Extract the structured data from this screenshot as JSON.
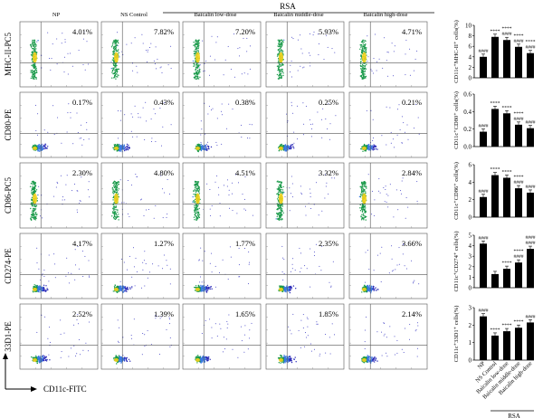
{
  "header": {
    "group_label": "RSA",
    "columns": [
      "NP",
      "NS Control",
      "Baicalin low-dose",
      "Baicalin middle-dose",
      "Baicalin high-dose"
    ]
  },
  "rows": [
    {
      "marker": "MHC-II-PC5",
      "percents": [
        "4.01%",
        "7.82%",
        "7.20%",
        "5.93%",
        "4.71%"
      ]
    },
    {
      "marker": "CD80-PE",
      "percents": [
        "0.17%",
        "0.43%",
        "0.38%",
        "0.25%",
        "0.21%"
      ]
    },
    {
      "marker": "CD86-PC5",
      "percents": [
        "2.30%",
        "4.80%",
        "4.51%",
        "3.32%",
        "2.84%"
      ]
    },
    {
      "marker": "CD274-PE",
      "percents": [
        "4.17%",
        "1.27%",
        "1.77%",
        "2.35%",
        "3.66%"
      ]
    },
    {
      "marker": "33D1-PE",
      "percents": [
        "2.52%",
        "1.39%",
        "1.65%",
        "1.85%",
        "2.14%"
      ]
    }
  ],
  "axes": {
    "x_label": "CD11c-FITC",
    "y_label": "33D1-PE"
  },
  "chart_data": [
    {
      "type": "bar",
      "ylabel": "CD11c⁺MHC-II⁺ cells(%)",
      "ylim": [
        0,
        10
      ],
      "yticks": [
        0,
        2,
        4,
        6,
        8,
        10
      ],
      "categories": [
        "NP",
        "NS Control",
        "Baicalin low-dose",
        "Baicalin middle-dose",
        "Baicalin high-dose"
      ],
      "values": [
        4.0,
        7.8,
        7.2,
        5.9,
        4.7
      ],
      "annotations": [
        "####",
        "****",
        "****\n####",
        "****\n####",
        "****\n####"
      ]
    },
    {
      "type": "bar",
      "ylabel": "CD11c⁺CD80⁺ cells(%)",
      "ylim": [
        0,
        0.6
      ],
      "yticks": [
        0.0,
        0.2,
        0.4,
        0.6
      ],
      "categories": [
        "NP",
        "NS Control",
        "Baicalin low-dose",
        "Baicalin middle-dose",
        "Baicalin high-dose"
      ],
      "values": [
        0.17,
        0.43,
        0.38,
        0.25,
        0.21
      ],
      "annotations": [
        "####",
        "****",
        "****",
        "****\n####",
        "####"
      ]
    },
    {
      "type": "bar",
      "ylabel": "CD11c⁺CD86⁺ cells(%)",
      "ylim": [
        0,
        6
      ],
      "yticks": [
        0,
        2,
        4,
        6
      ],
      "categories": [
        "NP",
        "NS Control",
        "Baicalin low-dose",
        "Baicalin middle-dose",
        "Baicalin high-dose"
      ],
      "values": [
        2.3,
        4.8,
        4.5,
        3.3,
        2.8
      ],
      "annotations": [
        "####",
        "****",
        "****",
        "****\n####",
        "####"
      ]
    },
    {
      "type": "bar",
      "ylabel": "CD11c⁺CD274⁺ cells(%)",
      "ylim": [
        0,
        5
      ],
      "yticks": [
        0,
        1,
        2,
        3,
        4,
        5
      ],
      "categories": [
        "NP",
        "NS Control",
        "Baicalin low-dose",
        "Baicalin middle-dose",
        "Baicalin high-dose"
      ],
      "values": [
        4.2,
        1.3,
        1.8,
        2.4,
        3.7
      ],
      "annotations": [
        "####",
        "",
        "****",
        "****\n####",
        "####\n####"
      ]
    },
    {
      "type": "bar",
      "ylabel": "CD11c⁺33D1⁺ cells(%)",
      "ylim": [
        0,
        3
      ],
      "yticks": [
        0,
        1,
        2,
        3
      ],
      "categories": [
        "NP",
        "NS Control",
        "Baicalin low-dose",
        "Baicalin middle-dose",
        "Baicalin high-dose"
      ],
      "values": [
        2.5,
        1.4,
        1.65,
        1.85,
        2.15
      ],
      "annotations": [
        "####",
        "****",
        "****",
        "****",
        "####"
      ]
    }
  ],
  "bar_chart_footer": {
    "categories": [
      "NP",
      "NS Control",
      "Baicalin low-dose",
      "Baicalin middle-dose",
      "Baicalin high-dose"
    ],
    "group_label": "RSA"
  },
  "colors": {
    "bar": "#000000",
    "dot_dense": "#1a8a3a",
    "dot_mid": "#5a7ad8",
    "dot_sparse": "#3030c0",
    "hot": "#f5d21a"
  }
}
